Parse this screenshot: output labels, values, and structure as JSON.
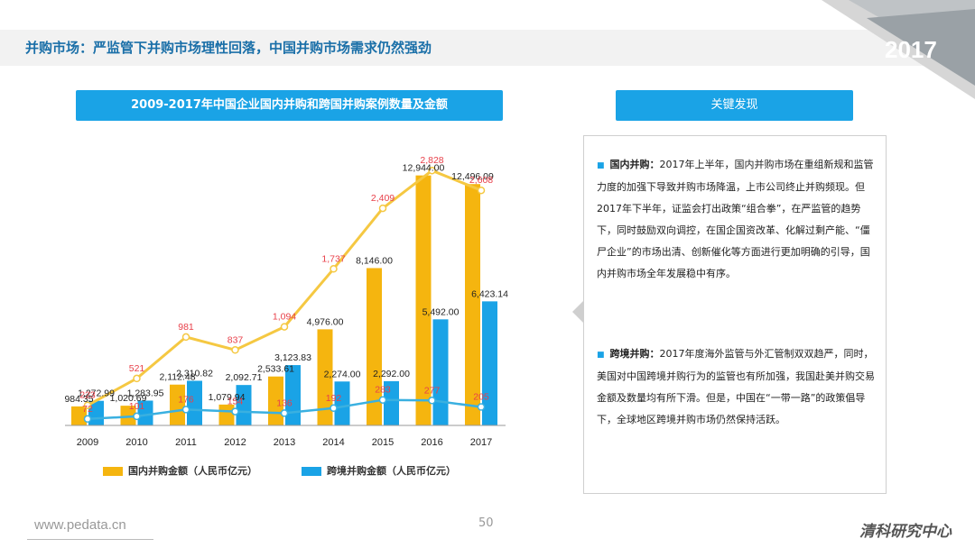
{
  "header": {
    "title": "并购市场：严监管下并购市场理性回落，中国并购市场需求仍然强劲",
    "year": "2017"
  },
  "chart_title": "2009-2017年中国企业国内并购和跨国并购案例数量及金额",
  "findings_title": "关键发现",
  "findings": [
    {
      "label": "国内并购：",
      "text": "2017年上半年，国内并购市场在重组新规和监管力度的加强下导致并购市场降温，上市公司终止并购频现。但2017年下半年，证监会打出政策“组合拳”，在严监管的趋势下，同时鼓励双向调控，在国企国资改革、化解过剩产能、“僵尸企业”的市场出清、创新催化等方面进行更加明确的引导，国内并购市场全年发展稳中有序。"
    },
    {
      "label": "跨境并购：",
      "text": "2017年度海外监管与外汇管制双双趋严，同时，美国对中国跨境并购行为的监管也有所加强，我国赴美并购交易金额及数量均有所下滑。但是，中国在“一带一路”的政策倡导下，全球地区跨境并购市场仍然保持活跃。"
    }
  ],
  "chart_data": {
    "type": "bar",
    "categories": [
      "2009",
      "2010",
      "2011",
      "2012",
      "2013",
      "2014",
      "2015",
      "2016",
      "2017"
    ],
    "series": [
      {
        "name": "国内并购金额（人民币亿元）",
        "color": "#f5b50f",
        "values": [
          984.35,
          1020.69,
          2112.48,
          1079.94,
          2533.61,
          4976.0,
          8146.0,
          12944.0,
          12496.09
        ],
        "labels": [
          "984.35",
          "1,020.69",
          "2,112.48",
          "1,079.94",
          "2,533.61",
          "4,976.00",
          "8,146.00",
          "12,944.00",
          "12,496.09"
        ]
      },
      {
        "name": "跨境并购金额（人民币亿元）",
        "color": "#1aa3e6",
        "values": [
          1272.99,
          1283.95,
          2310.82,
          2092.71,
          3123.83,
          2274.0,
          2292.0,
          5492.0,
          6423.14
        ],
        "labels": [
          "1,272.99",
          "1,283.95",
          "2,310.82",
          "2,092.71",
          "3,123.83",
          "2,274.00",
          "2,292.00",
          "5,492.00",
          "6,423.14"
        ]
      }
    ],
    "count_series": [
      {
        "name": "国内并购案例数量",
        "color": "#f5c842",
        "label_color": "#e8404a",
        "values": [
          223,
          521,
          981,
          837,
          1094,
          1737,
          2409,
          2828,
          2608
        ],
        "labels": [
          "223",
          "521",
          "981",
          "837",
          "1,094",
          "1,737",
          "2,409",
          "2,828",
          "2,608"
        ]
      },
      {
        "name": "跨境并购案例数量",
        "color": "#3ab0e0",
        "label_color": "#e8404a",
        "values": [
          72,
          101,
          176,
          154,
          136,
          192,
          283,
          277,
          205
        ],
        "labels": [
          "72",
          "101",
          "176",
          "154",
          "136",
          "192",
          "283",
          "277",
          "205"
        ]
      }
    ],
    "ylim_amount": [
      0,
      14000
    ],
    "ylim_count": [
      0,
      3000
    ]
  },
  "footer": {
    "url": "www.pedata.cn",
    "page": "50",
    "brand": "清科研究中心"
  }
}
